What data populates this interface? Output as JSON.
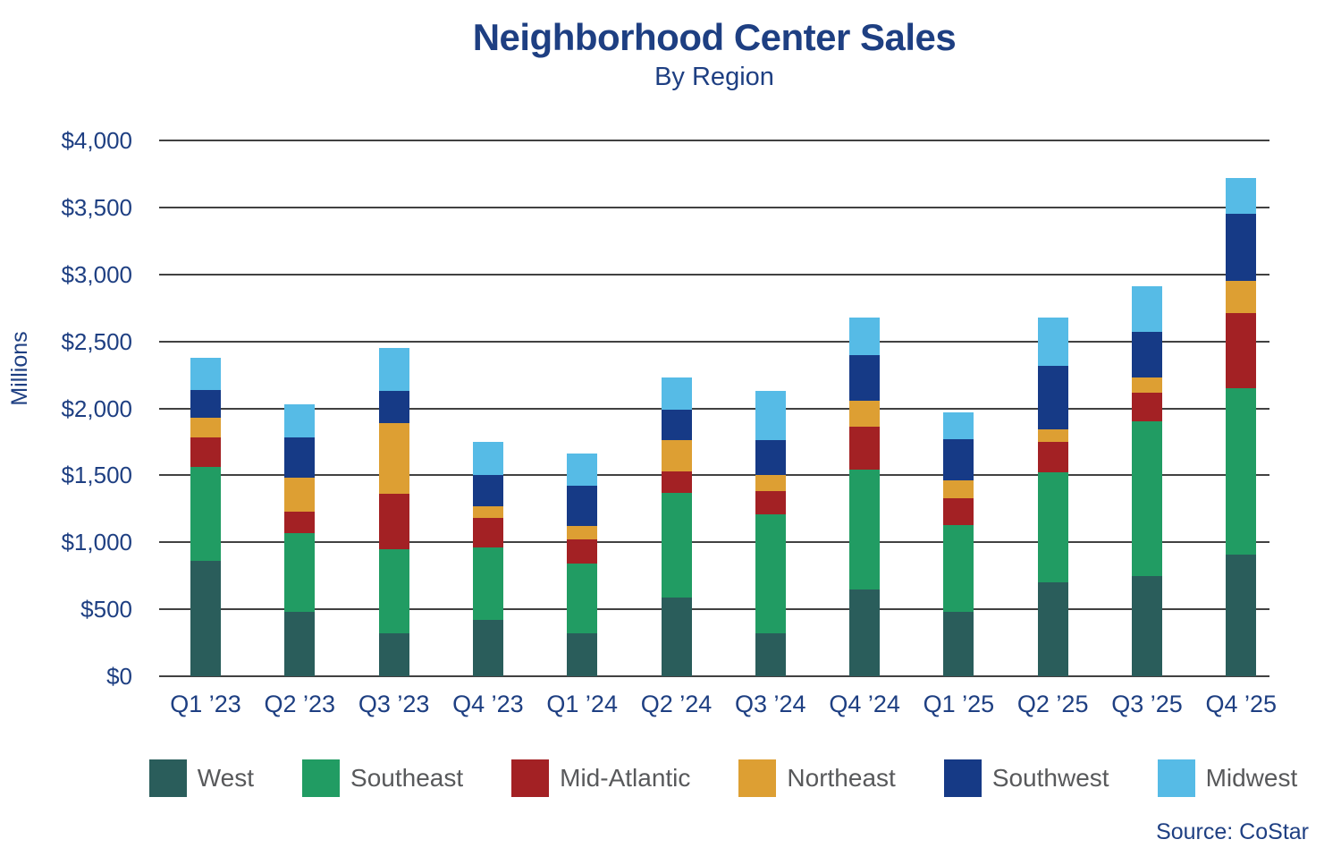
{
  "header": {
    "title": "Neighborhood Center Sales",
    "subtitle": "By Region"
  },
  "source_note": "Source: CoStar",
  "style": {
    "title_color": "#1E3F82",
    "axis_text_color": "#1E3F82",
    "legend_text_color": "#58595B",
    "gridline_color": "#414141",
    "background": "#FFFFFF"
  },
  "chart_data": {
    "type": "bar",
    "variant": "stacked",
    "title": "Neighborhood Center Sales",
    "subtitle": "By Region",
    "ylabel": "Millions",
    "xlabel": "",
    "grid": true,
    "legend_position": "bottom",
    "ylim": [
      0,
      4000
    ],
    "y_ticks": [
      {
        "value": 4000,
        "label": "$4,000"
      },
      {
        "value": 3500,
        "label": "$3,500"
      },
      {
        "value": 3000,
        "label": "$3,000"
      },
      {
        "value": 2500,
        "label": "$2,500"
      },
      {
        "value": 2000,
        "label": "$2,000"
      },
      {
        "value": 1500,
        "label": "$1,500"
      },
      {
        "value": 1000,
        "label": "$1,000"
      },
      {
        "value": 500,
        "label": "$500"
      },
      {
        "value": 0,
        "label": "$0"
      }
    ],
    "categories": [
      "Q1 ’23",
      "Q2 ’23",
      "Q3 ’23",
      "Q4 ’23",
      "Q1 ’24",
      "Q2 ’24",
      "Q3 ’24",
      "Q4 ’24",
      "Q1 ’25",
      "Q2 ’25",
      "Q3 ’25",
      "Q4 ’25"
    ],
    "series": [
      {
        "name": "West",
        "color": "#2A5D5B",
        "values": [
          860,
          480,
          320,
          420,
          320,
          590,
          320,
          650,
          480,
          700,
          750,
          910
        ]
      },
      {
        "name": "Southeast",
        "color": "#219C63",
        "values": [
          700,
          590,
          630,
          540,
          520,
          780,
          890,
          890,
          650,
          820,
          1150,
          1240
        ]
      },
      {
        "name": "Mid-Atlantic",
        "color": "#A32124",
        "values": [
          220,
          160,
          410,
          220,
          180,
          160,
          170,
          320,
          200,
          230,
          220,
          560
        ]
      },
      {
        "name": "Northeast",
        "color": "#DD9F33",
        "values": [
          150,
          250,
          530,
          90,
          100,
          230,
          120,
          200,
          130,
          90,
          110,
          240
        ]
      },
      {
        "name": "Southwest",
        "color": "#163A86",
        "values": [
          210,
          300,
          240,
          230,
          300,
          230,
          260,
          340,
          310,
          480,
          340,
          500
        ]
      },
      {
        "name": "Midwest",
        "color": "#56BBE6",
        "values": [
          240,
          250,
          320,
          250,
          240,
          240,
          370,
          280,
          200,
          360,
          340,
          270
        ]
      }
    ],
    "totals": [
      2380,
      2030,
      2450,
      1750,
      1660,
      2230,
      2130,
      2680,
      1970,
      2680,
      2910,
      3720
    ]
  }
}
